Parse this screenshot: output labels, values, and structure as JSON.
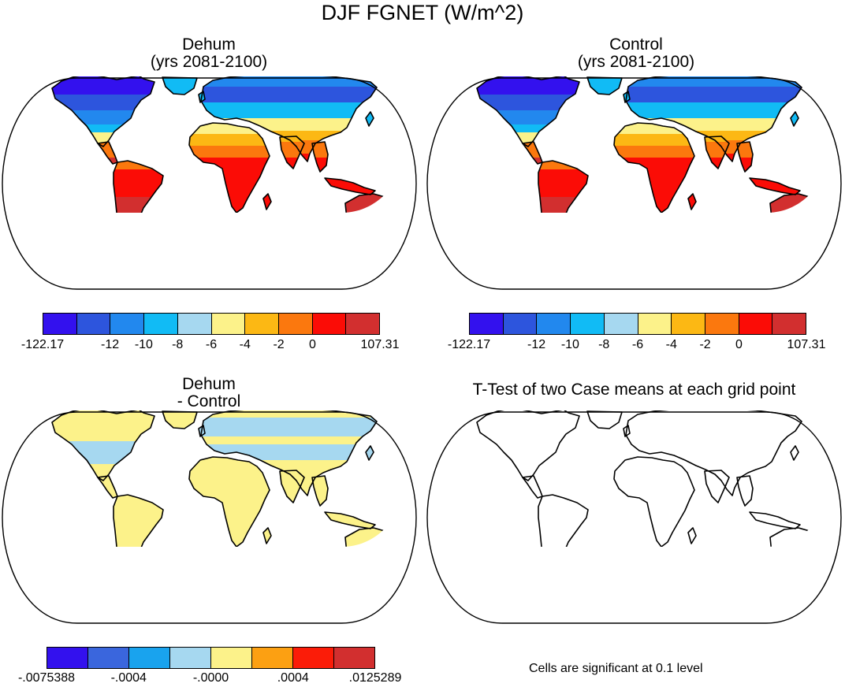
{
  "figure": {
    "title": "DJF FGNET (W/m^2)"
  },
  "panels": [
    {
      "title_line1": "Dehum",
      "title_line2": "(yrs 2081-2100)",
      "field": "absolute"
    },
    {
      "title_line1": "Control",
      "title_line2": "(yrs 2081-2100)",
      "field": "absolute"
    },
    {
      "title_line1": "Dehum",
      "title_line2": "- Control",
      "field": "difference"
    },
    {
      "title_line1": "T-Test of two Case means at each grid point",
      "title_line2": "",
      "field": "none",
      "note": "Cells are significant at 0.1 level"
    }
  ],
  "colorbars": {
    "absolute": {
      "colors": [
        "#3311ee",
        "#2d55dd",
        "#2288ee",
        "#11bbf5",
        "#a6d8f0",
        "#fcf28a",
        "#fcb814",
        "#fb780e",
        "#fb0c06",
        "#d22f2f"
      ],
      "labels": [
        "-122.17",
        "-12",
        "-10",
        "-8",
        "-6",
        "-4",
        "-2",
        "0",
        "107.31"
      ],
      "label_boundaries": [
        0,
        2,
        3,
        4,
        5,
        6,
        7,
        8,
        10
      ]
    },
    "difference": {
      "colors": [
        "#3311ee",
        "#3a66dd",
        "#19a3ee",
        "#a6d8f0",
        "#fcf28a",
        "#fca012",
        "#fb1c08",
        "#d22f2f"
      ],
      "labels": [
        "-.0075388",
        "-.0004",
        "-.0000",
        ".0004",
        ".0125289"
      ],
      "label_boundaries": [
        0,
        2,
        4,
        6,
        8
      ]
    }
  },
  "map_colors": {
    "ocean": "#ffffff",
    "coast": "#000000"
  }
}
